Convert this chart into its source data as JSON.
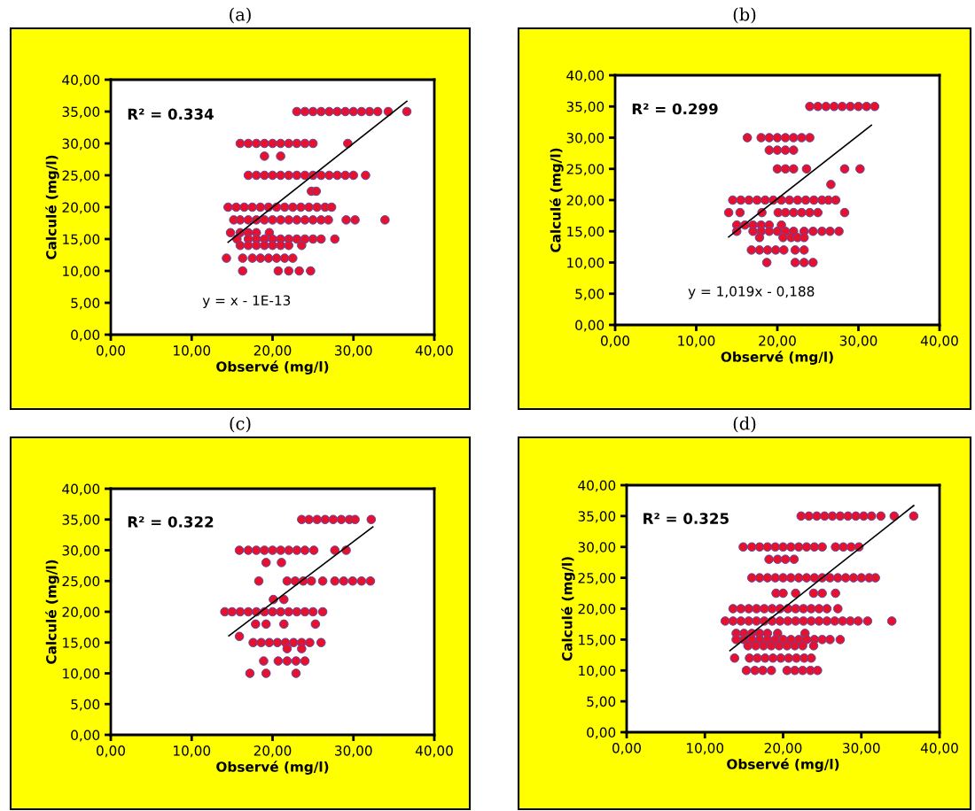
{
  "chart_data": [
    {
      "type": "scatter",
      "title": "(a)",
      "xlabel": "Observé (mg/l)",
      "ylabel": "Calculé (mg/l)",
      "annotations": [
        "R² = 0.334",
        "y = x - 1E-13"
      ],
      "xlim": [
        0,
        40
      ],
      "ylim": [
        0,
        40
      ],
      "xticks": [
        {
          "value": 0,
          "label": "0,00"
        },
        {
          "value": 10,
          "label": "10,00"
        },
        {
          "value": 20,
          "label": "20,00"
        },
        {
          "value": 30,
          "label": "30,00"
        },
        {
          "value": 40,
          "label": "40,00"
        }
      ],
      "yticks": [
        {
          "value": 0,
          "label": "0,00"
        },
        {
          "value": 5,
          "label": "5,00"
        },
        {
          "value": 10,
          "label": "10,00"
        },
        {
          "value": 15,
          "label": "15,00"
        },
        {
          "value": 20,
          "label": "20,00"
        },
        {
          "value": 25,
          "label": "25,00"
        },
        {
          "value": 30,
          "label": "30,00"
        },
        {
          "value": 35,
          "label": "35,00"
        },
        {
          "value": 40,
          "label": "40,00"
        }
      ],
      "grid": false,
      "series": [
        {
          "marker": "circle",
          "color": "#e8112d",
          "x": [
            23,
            24,
            25,
            26,
            27,
            28,
            29,
            30,
            31,
            32,
            33,
            34.3,
            36.6,
            16,
            17,
            18,
            19,
            20,
            21,
            22,
            23,
            24,
            25,
            29.3,
            19,
            21,
            17,
            18,
            19,
            20,
            21,
            22,
            23,
            24,
            25,
            26,
            27,
            28,
            29,
            30,
            31.5,
            24.8,
            25.4,
            14.5,
            15.5,
            16.5,
            17.5,
            18.5,
            19.5,
            20.5,
            21.5,
            22.5,
            23.5,
            24.5,
            25.5,
            26.5,
            27.3,
            15.2,
            16,
            17,
            18,
            19,
            20,
            21,
            22,
            23,
            24,
            25,
            26,
            26.9,
            29.1,
            30.2,
            33.9,
            14.8,
            16,
            17,
            18,
            19.6,
            15.6,
            17,
            18,
            19,
            20,
            21,
            22,
            23,
            24,
            25,
            26,
            27.7,
            16,
            17,
            18,
            19,
            20,
            21,
            22,
            23.6,
            14.3,
            16.3,
            17.5,
            18.5,
            19.5,
            20.5,
            21.5,
            22.5,
            16.3,
            20.7,
            22,
            23.3,
            24.7
          ],
          "values": [
            35,
            35,
            35,
            35,
            35,
            35,
            35,
            35,
            35,
            35,
            35,
            35,
            35,
            30,
            30,
            30,
            30,
            30,
            30,
            30,
            30,
            30,
            30,
            30,
            28,
            28,
            25,
            25,
            25,
            25,
            25,
            25,
            25,
            25,
            25,
            25,
            25,
            25,
            25,
            25,
            25,
            22.5,
            22.5,
            20,
            20,
            20,
            20,
            20,
            20,
            20,
            20,
            20,
            20,
            20,
            20,
            20,
            20,
            18,
            18,
            18,
            18,
            18,
            18,
            18,
            18,
            18,
            18,
            18,
            18,
            18,
            18,
            18,
            18,
            16,
            16,
            16,
            16,
            16,
            15,
            15,
            15,
            15,
            15,
            15,
            15,
            15,
            15,
            15,
            15,
            15,
            14,
            14,
            14,
            14,
            14,
            14,
            14,
            14,
            12,
            12,
            12,
            12,
            12,
            12,
            12,
            12,
            10,
            10,
            10,
            10,
            10
          ]
        },
        {
          "type": "line",
          "color": "#000000",
          "x": [
            14.5,
            36.6
          ],
          "values": [
            14.5,
            36.6
          ]
        }
      ]
    },
    {
      "type": "scatter",
      "title": "(b)",
      "xlabel": "Observé (mg/l)",
      "ylabel": "Calculé (mg/l)",
      "annotations": [
        "R² = 0.299",
        "y = 1,019x - 0,188"
      ],
      "xlim": [
        0,
        40
      ],
      "ylim": [
        0,
        40
      ],
      "xticks": [
        {
          "value": 0,
          "label": "0,00"
        },
        {
          "value": 10,
          "label": "10,00"
        },
        {
          "value": 20,
          "label": "20,00"
        },
        {
          "value": 30,
          "label": "30,00"
        },
        {
          "value": 40,
          "label": "40,00"
        }
      ],
      "yticks": [
        {
          "value": 0,
          "label": "0,00"
        },
        {
          "value": 5,
          "label": "5,00"
        },
        {
          "value": 10,
          "label": "10,00"
        },
        {
          "value": 15,
          "label": "15,00"
        },
        {
          "value": 20,
          "label": "20,00"
        },
        {
          "value": 25,
          "label": "25,00"
        },
        {
          "value": 30,
          "label": "30,00"
        },
        {
          "value": 35,
          "label": "35,00"
        },
        {
          "value": 40,
          "label": "40,00"
        }
      ],
      "grid": false,
      "series": [
        {
          "marker": "circle",
          "color": "#e8112d",
          "x": [
            24,
            25,
            26,
            27,
            28,
            29,
            30,
            31,
            32,
            16.3,
            18,
            19,
            20,
            21,
            22,
            23,
            24,
            19,
            20,
            21,
            22,
            20,
            21,
            22,
            23.6,
            28.3,
            30.2,
            26.6,
            14.5,
            15.5,
            16.5,
            17.5,
            18.5,
            19.5,
            20.5,
            21.5,
            22.5,
            23.5,
            24.5,
            25.5,
            26.3,
            27.2,
            14,
            15.4,
            18.1,
            20.1,
            21,
            22,
            23,
            24,
            25,
            28.3,
            15,
            16,
            17,
            18,
            19,
            20.5,
            15,
            17,
            18,
            19,
            20,
            21,
            22,
            23.3,
            24.4,
            25.5,
            26.5,
            27.6,
            17.8,
            20.7,
            21.7,
            22.5,
            23.3,
            16.8,
            17.8,
            18.8,
            19.8,
            20.8,
            22.2,
            23.3,
            18.7,
            22.2,
            23.3,
            24.4
          ],
          "values": [
            35,
            35,
            35,
            35,
            35,
            35,
            35,
            35,
            35,
            30,
            30,
            30,
            30,
            30,
            30,
            30,
            30,
            28,
            28,
            28,
            28,
            25,
            25,
            25,
            25,
            25,
            25,
            22.5,
            20,
            20,
            20,
            20,
            20,
            20,
            20,
            20,
            20,
            20,
            20,
            20,
            20,
            20,
            18,
            18,
            18,
            18,
            18,
            18,
            18,
            18,
            18,
            18,
            16,
            16,
            16,
            16,
            16,
            16,
            15,
            15,
            15,
            15,
            15,
            15,
            15,
            15,
            15,
            15,
            15,
            15,
            14,
            14,
            14,
            14,
            14,
            12,
            12,
            12,
            12,
            12,
            12,
            12,
            10,
            10,
            10,
            10
          ]
        },
        {
          "type": "line",
          "color": "#000000",
          "x": [
            14,
            31.6
          ],
          "values": [
            14.1,
            32
          ]
        }
      ]
    },
    {
      "type": "scatter",
      "title": "(c)",
      "xlabel": "Observé (mg/l)",
      "ylabel": "Calculé (mg/l)",
      "annotations": [
        "R² = 0.322"
      ],
      "xlim": [
        0,
        40
      ],
      "ylim": [
        0,
        40
      ],
      "xticks": [
        {
          "value": 0,
          "label": "0,00"
        },
        {
          "value": 10,
          "label": "10,00"
        },
        {
          "value": 20,
          "label": "20,00"
        },
        {
          "value": 30,
          "label": "30,00"
        },
        {
          "value": 40,
          "label": "40,00"
        }
      ],
      "yticks": [
        {
          "value": 0,
          "label": "0,00"
        },
        {
          "value": 5,
          "label": "5,00"
        },
        {
          "value": 10,
          "label": "10,00"
        },
        {
          "value": 15,
          "label": "15,00"
        },
        {
          "value": 20,
          "label": "20,00"
        },
        {
          "value": 25,
          "label": "25,00"
        },
        {
          "value": 30,
          "label": "30,00"
        },
        {
          "value": 35,
          "label": "35,00"
        },
        {
          "value": 40,
          "label": "40,00"
        }
      ],
      "grid": false,
      "series": [
        {
          "marker": "circle",
          "color": "#e8112d",
          "x": [
            23.6,
            24.5,
            25.5,
            26.5,
            27.5,
            28.5,
            29.5,
            30.2,
            32.2,
            15.9,
            17,
            18,
            19,
            20,
            21,
            22,
            23,
            24,
            25.1,
            27.7,
            29.1,
            19.2,
            21.1,
            18.3,
            21.8,
            22.8,
            23.8,
            24.8,
            26.2,
            27.7,
            28.8,
            29.9,
            31,
            32.1,
            20.1,
            21.4,
            14.1,
            15,
            16,
            17,
            18,
            19,
            20,
            21,
            22,
            23,
            24,
            25,
            26.2,
            17.9,
            19.2,
            21.4,
            25.3,
            15.9,
            17.6,
            18.6,
            19.6,
            20.6,
            21.6,
            22.6,
            23.6,
            24.6,
            26,
            21.8,
            23.6,
            18.9,
            20.7,
            21.8,
            22.9,
            24,
            17.2,
            19.2,
            22.9
          ],
          "values": [
            35,
            35,
            35,
            35,
            35,
            35,
            35,
            35,
            35,
            30,
            30,
            30,
            30,
            30,
            30,
            30,
            30,
            30,
            30,
            30,
            30,
            28,
            28,
            25,
            25,
            25,
            25,
            25,
            25,
            25,
            25,
            25,
            25,
            25,
            22,
            22,
            20,
            20,
            20,
            20,
            20,
            20,
            20,
            20,
            20,
            20,
            20,
            20,
            20,
            18,
            18,
            18,
            18,
            16,
            15,
            15,
            15,
            15,
            15,
            15,
            15,
            15,
            15,
            14,
            14,
            12,
            12,
            12,
            12,
            12,
            10,
            10,
            10
          ]
        },
        {
          "type": "line",
          "color": "#000000",
          "x": [
            14.6,
            32.4
          ],
          "values": [
            16.1,
            33.8
          ]
        }
      ]
    },
    {
      "type": "scatter",
      "title": "(d)",
      "xlabel": "Observé (mg/l)",
      "ylabel": "Calculé (mg/l)",
      "annotations": [
        "R² = 0.325"
      ],
      "xlim": [
        0,
        40
      ],
      "ylim": [
        0,
        40
      ],
      "xticks": [
        {
          "value": 0,
          "label": "0,00"
        },
        {
          "value": 10,
          "label": "10,00"
        },
        {
          "value": 20,
          "label": "20,00"
        },
        {
          "value": 30,
          "label": "30,00"
        },
        {
          "value": 40,
          "label": "40,00"
        }
      ],
      "yticks": [
        {
          "value": 0,
          "label": "0,00"
        },
        {
          "value": 5,
          "label": "5,00"
        },
        {
          "value": 10,
          "label": "10,00"
        },
        {
          "value": 15,
          "label": "15,00"
        },
        {
          "value": 20,
          "label": "20,00"
        },
        {
          "value": 25,
          "label": "25,00"
        },
        {
          "value": 30,
          "label": "30,00"
        },
        {
          "value": 35,
          "label": "35,00"
        },
        {
          "value": 40,
          "label": "40,00"
        }
      ],
      "grid": false,
      "series": [
        {
          "marker": "circle",
          "color": "#e8112d",
          "x": [
            22.3,
            23.3,
            24.3,
            25.3,
            26.3,
            27.3,
            28.3,
            29.3,
            30.3,
            31.3,
            32.5,
            34.2,
            36.7,
            14.9,
            16,
            17,
            18,
            19,
            20,
            21,
            22,
            23,
            24,
            25,
            26.7,
            27.7,
            28.7,
            29.7,
            18.2,
            19.3,
            20.3,
            21.4,
            16,
            17,
            18,
            19,
            20,
            21,
            22,
            23,
            24,
            25,
            26,
            27,
            28,
            29,
            30,
            31,
            31.8,
            19.1,
            20,
            21.6,
            23.9,
            25,
            26.7,
            13.6,
            14.6,
            15.6,
            16.6,
            17.6,
            18.6,
            19.6,
            20.6,
            21.6,
            22.6,
            23.6,
            24.6,
            25.6,
            27,
            12.6,
            13.6,
            14.6,
            15.6,
            16.6,
            17.6,
            18.6,
            19.6,
            20.6,
            21.6,
            22.6,
            23.6,
            24.6,
            25.6,
            26.6,
            27.6,
            28.6,
            29.6,
            30.8,
            33.9,
            14,
            15,
            16,
            17,
            18,
            19.3,
            22.8,
            14,
            15,
            16,
            17,
            18,
            19,
            20,
            21,
            22,
            23,
            24,
            25,
            26,
            27.3,
            15.5,
            16.5,
            17.5,
            18.5,
            19.5,
            20.5,
            21.5,
            22.5,
            23.9,
            13.8,
            15.7,
            16.7,
            17.7,
            18.7,
            19.7,
            20.7,
            21.7,
            22.7,
            23.6,
            15.3,
            16.4,
            17.4,
            18.5,
            20.5,
            21.5,
            22.5,
            23.5,
            24.4
          ],
          "values": [
            35,
            35,
            35,
            35,
            35,
            35,
            35,
            35,
            35,
            35,
            35,
            35,
            35,
            30,
            30,
            30,
            30,
            30,
            30,
            30,
            30,
            30,
            30,
            30,
            30,
            30,
            30,
            30,
            28,
            28,
            28,
            28,
            25,
            25,
            25,
            25,
            25,
            25,
            25,
            25,
            25,
            25,
            25,
            25,
            25,
            25,
            25,
            25,
            25,
            22.5,
            22.5,
            22.5,
            22.5,
            22.5,
            22.5,
            20,
            20,
            20,
            20,
            20,
            20,
            20,
            20,
            20,
            20,
            20,
            20,
            20,
            20,
            18,
            18,
            18,
            18,
            18,
            18,
            18,
            18,
            18,
            18,
            18,
            18,
            18,
            18,
            18,
            18,
            18,
            18,
            18,
            18,
            16,
            16,
            16,
            16,
            16,
            16,
            16,
            15,
            15,
            15,
            15,
            15,
            15,
            15,
            15,
            15,
            15,
            15,
            15,
            15,
            15,
            14,
            14,
            14,
            14,
            14,
            14,
            14,
            14,
            14,
            12,
            12,
            12,
            12,
            12,
            12,
            12,
            12,
            12,
            12,
            10,
            10,
            10,
            10,
            10,
            10,
            10,
            10,
            10
          ]
        },
        {
          "type": "line",
          "color": "#000000",
          "x": [
            13.2,
            36.7
          ],
          "values": [
            13.2,
            36.7
          ]
        }
      ]
    }
  ]
}
